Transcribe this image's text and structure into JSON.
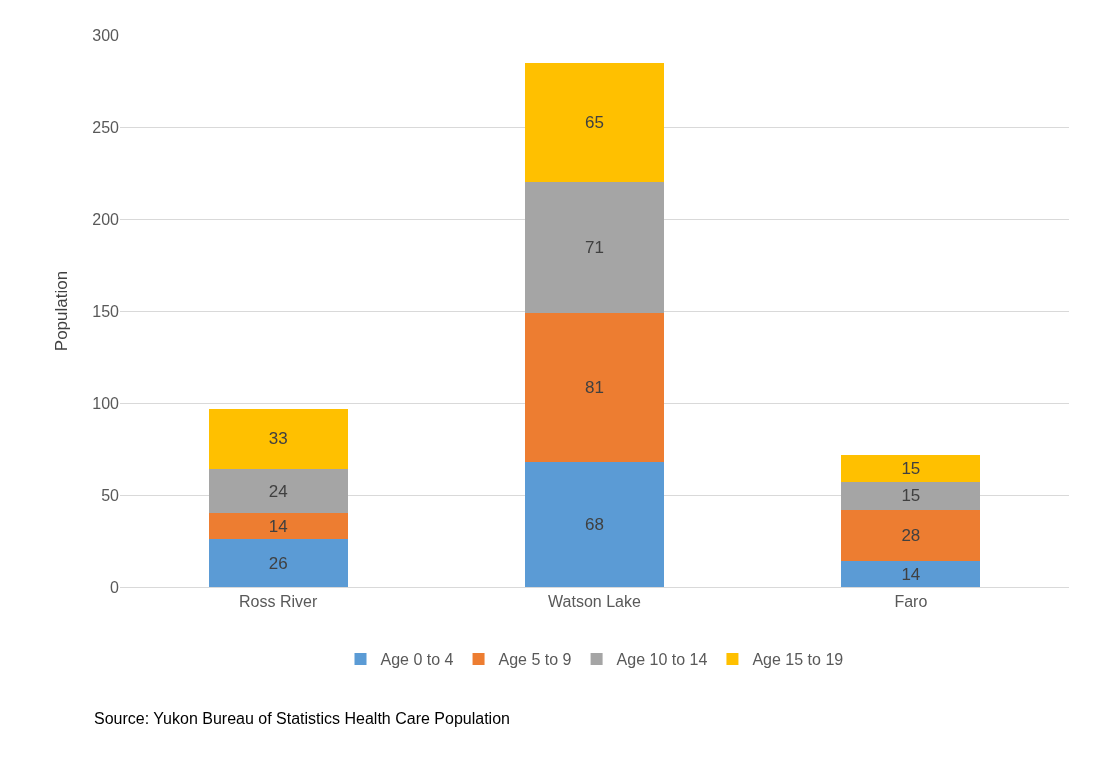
{
  "chart_data": {
    "type": "bar",
    "stacked": true,
    "ylabel": "Population",
    "categories": [
      "Ross River",
      "Watson Lake",
      "Faro"
    ],
    "series": [
      {
        "name": "Age 0 to 4",
        "color": "#5b9bd5",
        "values": [
          26,
          68,
          14
        ]
      },
      {
        "name": "Age 5 to 9",
        "color": "#ed7d31",
        "values": [
          14,
          81,
          28
        ]
      },
      {
        "name": "Age 10 to 14",
        "color": "#a5a5a5",
        "values": [
          24,
          71,
          15
        ]
      },
      {
        "name": "Age 15 to 19",
        "color": "#ffc000",
        "values": [
          33,
          65,
          15
        ]
      }
    ],
    "ylim": [
      0,
      300
    ],
    "yticks": [
      0,
      50,
      100,
      150,
      200,
      250,
      300
    ],
    "grid": "y",
    "legend": "bottom",
    "data_labels": true,
    "annotations": [
      "Source: Yukon Bureau of Statistics Health Care Population"
    ]
  }
}
